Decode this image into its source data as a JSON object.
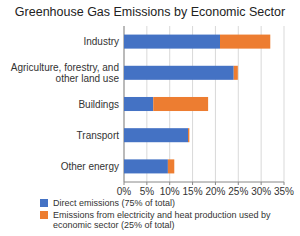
{
  "chart_data": {
    "type": "bar",
    "title": "Greenhouse Gas Emissions by Economic Sector",
    "orientation": "horizontal",
    "stacked": true,
    "grid": true,
    "legend": "bottom",
    "categories": [
      "Industry",
      "Agriculture, forestry, and other land use",
      "Buildings",
      "Transport",
      "Other energy"
    ],
    "series": [
      {
        "name": "Direct emissions (75% of total)",
        "color": "#4472c4",
        "values": [
          21,
          24,
          6.4,
          14,
          9.6
        ]
      },
      {
        "name": "Emissions from electricity and heat production used by economic sector (25% of total)",
        "color": "#ed7d31",
        "values": [
          11,
          0.9,
          12,
          0.3,
          1.4
        ]
      }
    ],
    "xlim": [
      0,
      35
    ],
    "xticks": [
      {
        "value": 0,
        "label": "0%"
      },
      {
        "value": 5,
        "label": "5%"
      },
      {
        "value": 10,
        "label": "10%"
      },
      {
        "value": 15,
        "label": "15%"
      },
      {
        "value": 20,
        "label": "20%"
      },
      {
        "value": 25,
        "label": "25%"
      },
      {
        "value": 30,
        "label": "30%"
      },
      {
        "value": 35,
        "label": "35%"
      }
    ]
  }
}
